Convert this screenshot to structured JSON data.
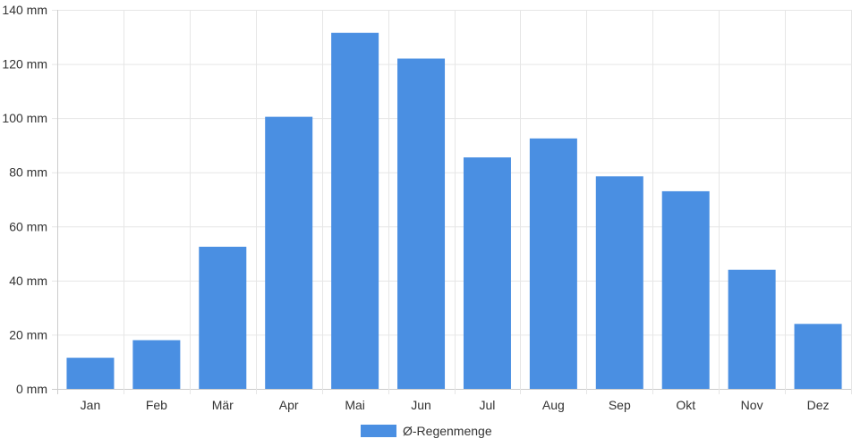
{
  "chart_data": {
    "type": "bar",
    "categories": [
      "Jan",
      "Feb",
      "Mär",
      "Apr",
      "Mai",
      "Jun",
      "Jul",
      "Aug",
      "Sep",
      "Okt",
      "Nov",
      "Dez"
    ],
    "series": [
      {
        "name": "Ø-Regenmenge",
        "values": [
          11.5,
          18,
          52.5,
          100.5,
          131.5,
          122,
          85.5,
          92.5,
          78.5,
          73,
          44,
          24
        ]
      }
    ],
    "ylim": [
      0,
      140
    ],
    "yticks": [
      0,
      20,
      40,
      60,
      80,
      100,
      120,
      140
    ],
    "y_unit": "mm",
    "grid": true,
    "legend_position": "bottom",
    "colors": {
      "bar": "#4a8fe2",
      "grid": "#e6e6e6",
      "axis": "#cccccc",
      "text": "#333333"
    }
  }
}
